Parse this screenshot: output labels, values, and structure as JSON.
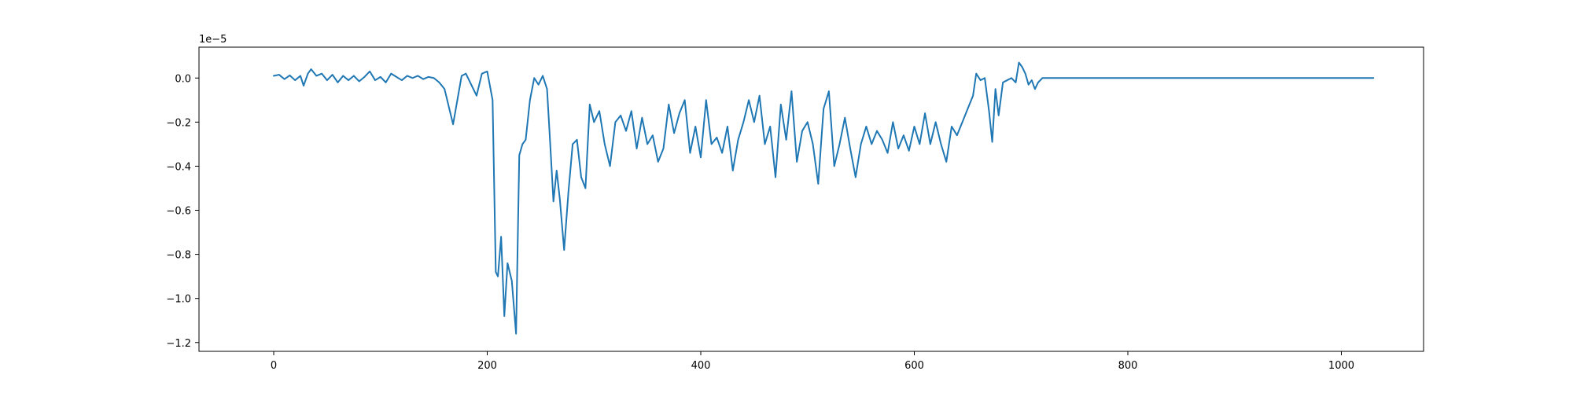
{
  "chart_data": {
    "type": "line",
    "title": "",
    "xlabel": "",
    "ylabel": "",
    "y_offset_text": "1e−5",
    "xlim": [
      -70,
      1077
    ],
    "ylim": [
      -1.24,
      0.14
    ],
    "x_ticks": [
      0,
      200,
      400,
      600,
      800,
      1000
    ],
    "x_tick_labels": [
      "0",
      "200",
      "400",
      "600",
      "800",
      "1000"
    ],
    "y_ticks": [
      0.0,
      -0.2,
      -0.4,
      -0.6,
      -0.8,
      -1.0,
      -1.2
    ],
    "y_tick_labels": [
      "0.0",
      "−0.2",
      "−0.4",
      "−0.6",
      "−0.8",
      "−1.0",
      "−1.2"
    ],
    "grid": false,
    "series": [
      {
        "color": "#1f77b4",
        "points": [
          [
            0,
            0.01
          ],
          [
            5,
            0.015
          ],
          [
            10,
            -0.005
          ],
          [
            15,
            0.012
          ],
          [
            20,
            -0.01
          ],
          [
            25,
            0.01
          ],
          [
            28,
            -0.035
          ],
          [
            32,
            0.02
          ],
          [
            35,
            0.04
          ],
          [
            40,
            0.01
          ],
          [
            45,
            0.02
          ],
          [
            50,
            -0.01
          ],
          [
            55,
            0.015
          ],
          [
            60,
            -0.02
          ],
          [
            65,
            0.01
          ],
          [
            70,
            -0.01
          ],
          [
            75,
            0.01
          ],
          [
            80,
            -0.015
          ],
          [
            85,
            0.005
          ],
          [
            90,
            0.03
          ],
          [
            95,
            -0.01
          ],
          [
            100,
            0.005
          ],
          [
            105,
            -0.02
          ],
          [
            110,
            0.02
          ],
          [
            115,
            0.005
          ],
          [
            120,
            -0.01
          ],
          [
            125,
            0.01
          ],
          [
            130,
            0.0
          ],
          [
            135,
            0.01
          ],
          [
            140,
            -0.005
          ],
          [
            145,
            0.005
          ],
          [
            150,
            0.0
          ],
          [
            155,
            -0.02
          ],
          [
            160,
            -0.05
          ],
          [
            165,
            -0.15
          ],
          [
            168,
            -0.21
          ],
          [
            172,
            -0.1
          ],
          [
            176,
            0.01
          ],
          [
            180,
            0.02
          ],
          [
            185,
            -0.03
          ],
          [
            190,
            -0.08
          ],
          [
            195,
            0.02
          ],
          [
            200,
            0.03
          ],
          [
            205,
            -0.1
          ],
          [
            208,
            -0.88
          ],
          [
            210,
            -0.9
          ],
          [
            213,
            -0.72
          ],
          [
            216,
            -1.08
          ],
          [
            219,
            -0.84
          ],
          [
            223,
            -0.92
          ],
          [
            227,
            -1.16
          ],
          [
            230,
            -0.35
          ],
          [
            233,
            -0.3
          ],
          [
            236,
            -0.28
          ],
          [
            240,
            -0.1
          ],
          [
            244,
            0.0
          ],
          [
            248,
            -0.03
          ],
          [
            252,
            0.01
          ],
          [
            256,
            -0.05
          ],
          [
            259,
            -0.3
          ],
          [
            262,
            -0.56
          ],
          [
            265,
            -0.42
          ],
          [
            268,
            -0.55
          ],
          [
            272,
            -0.78
          ],
          [
            276,
            -0.52
          ],
          [
            280,
            -0.3
          ],
          [
            284,
            -0.28
          ],
          [
            288,
            -0.45
          ],
          [
            292,
            -0.5
          ],
          [
            296,
            -0.12
          ],
          [
            300,
            -0.2
          ],
          [
            305,
            -0.15
          ],
          [
            310,
            -0.3
          ],
          [
            315,
            -0.4
          ],
          [
            320,
            -0.2
          ],
          [
            325,
            -0.17
          ],
          [
            330,
            -0.24
          ],
          [
            335,
            -0.15
          ],
          [
            340,
            -0.32
          ],
          [
            345,
            -0.18
          ],
          [
            350,
            -0.3
          ],
          [
            355,
            -0.26
          ],
          [
            360,
            -0.38
          ],
          [
            365,
            -0.32
          ],
          [
            370,
            -0.12
          ],
          [
            375,
            -0.25
          ],
          [
            380,
            -0.16
          ],
          [
            385,
            -0.1
          ],
          [
            390,
            -0.34
          ],
          [
            395,
            -0.22
          ],
          [
            400,
            -0.36
          ],
          [
            405,
            -0.1
          ],
          [
            410,
            -0.3
          ],
          [
            415,
            -0.27
          ],
          [
            420,
            -0.34
          ],
          [
            425,
            -0.22
          ],
          [
            430,
            -0.42
          ],
          [
            435,
            -0.28
          ],
          [
            440,
            -0.2
          ],
          [
            445,
            -0.1
          ],
          [
            450,
            -0.2
          ],
          [
            455,
            -0.08
          ],
          [
            460,
            -0.3
          ],
          [
            465,
            -0.22
          ],
          [
            470,
            -0.45
          ],
          [
            475,
            -0.12
          ],
          [
            480,
            -0.28
          ],
          [
            485,
            -0.06
          ],
          [
            490,
            -0.38
          ],
          [
            495,
            -0.24
          ],
          [
            500,
            -0.2
          ],
          [
            505,
            -0.3
          ],
          [
            510,
            -0.48
          ],
          [
            515,
            -0.14
          ],
          [
            520,
            -0.06
          ],
          [
            525,
            -0.4
          ],
          [
            530,
            -0.3
          ],
          [
            535,
            -0.18
          ],
          [
            540,
            -0.32
          ],
          [
            545,
            -0.45
          ],
          [
            550,
            -0.3
          ],
          [
            555,
            -0.22
          ],
          [
            560,
            -0.3
          ],
          [
            565,
            -0.24
          ],
          [
            570,
            -0.28
          ],
          [
            575,
            -0.34
          ],
          [
            580,
            -0.2
          ],
          [
            585,
            -0.32
          ],
          [
            590,
            -0.26
          ],
          [
            595,
            -0.33
          ],
          [
            600,
            -0.22
          ],
          [
            605,
            -0.3
          ],
          [
            610,
            -0.16
          ],
          [
            615,
            -0.3
          ],
          [
            620,
            -0.2
          ],
          [
            625,
            -0.3
          ],
          [
            630,
            -0.38
          ],
          [
            635,
            -0.22
          ],
          [
            640,
            -0.26
          ],
          [
            645,
            -0.2
          ],
          [
            650,
            -0.14
          ],
          [
            655,
            -0.08
          ],
          [
            658,
            0.02
          ],
          [
            662,
            -0.01
          ],
          [
            666,
            0.0
          ],
          [
            670,
            -0.15
          ],
          [
            673,
            -0.29
          ],
          [
            676,
            -0.05
          ],
          [
            679,
            -0.17
          ],
          [
            683,
            -0.02
          ],
          [
            687,
            -0.01
          ],
          [
            691,
            0.0
          ],
          [
            695,
            -0.02
          ],
          [
            698,
            0.07
          ],
          [
            701,
            0.05
          ],
          [
            704,
            0.02
          ],
          [
            707,
            -0.03
          ],
          [
            710,
            -0.01
          ],
          [
            713,
            -0.05
          ],
          [
            716,
            -0.02
          ],
          [
            720,
            0.0
          ],
          [
            750,
            0.0
          ],
          [
            800,
            0.0
          ],
          [
            850,
            0.0
          ],
          [
            900,
            0.0
          ],
          [
            950,
            0.0
          ],
          [
            1000,
            0.0
          ],
          [
            1030,
            0.0
          ]
        ]
      }
    ]
  }
}
